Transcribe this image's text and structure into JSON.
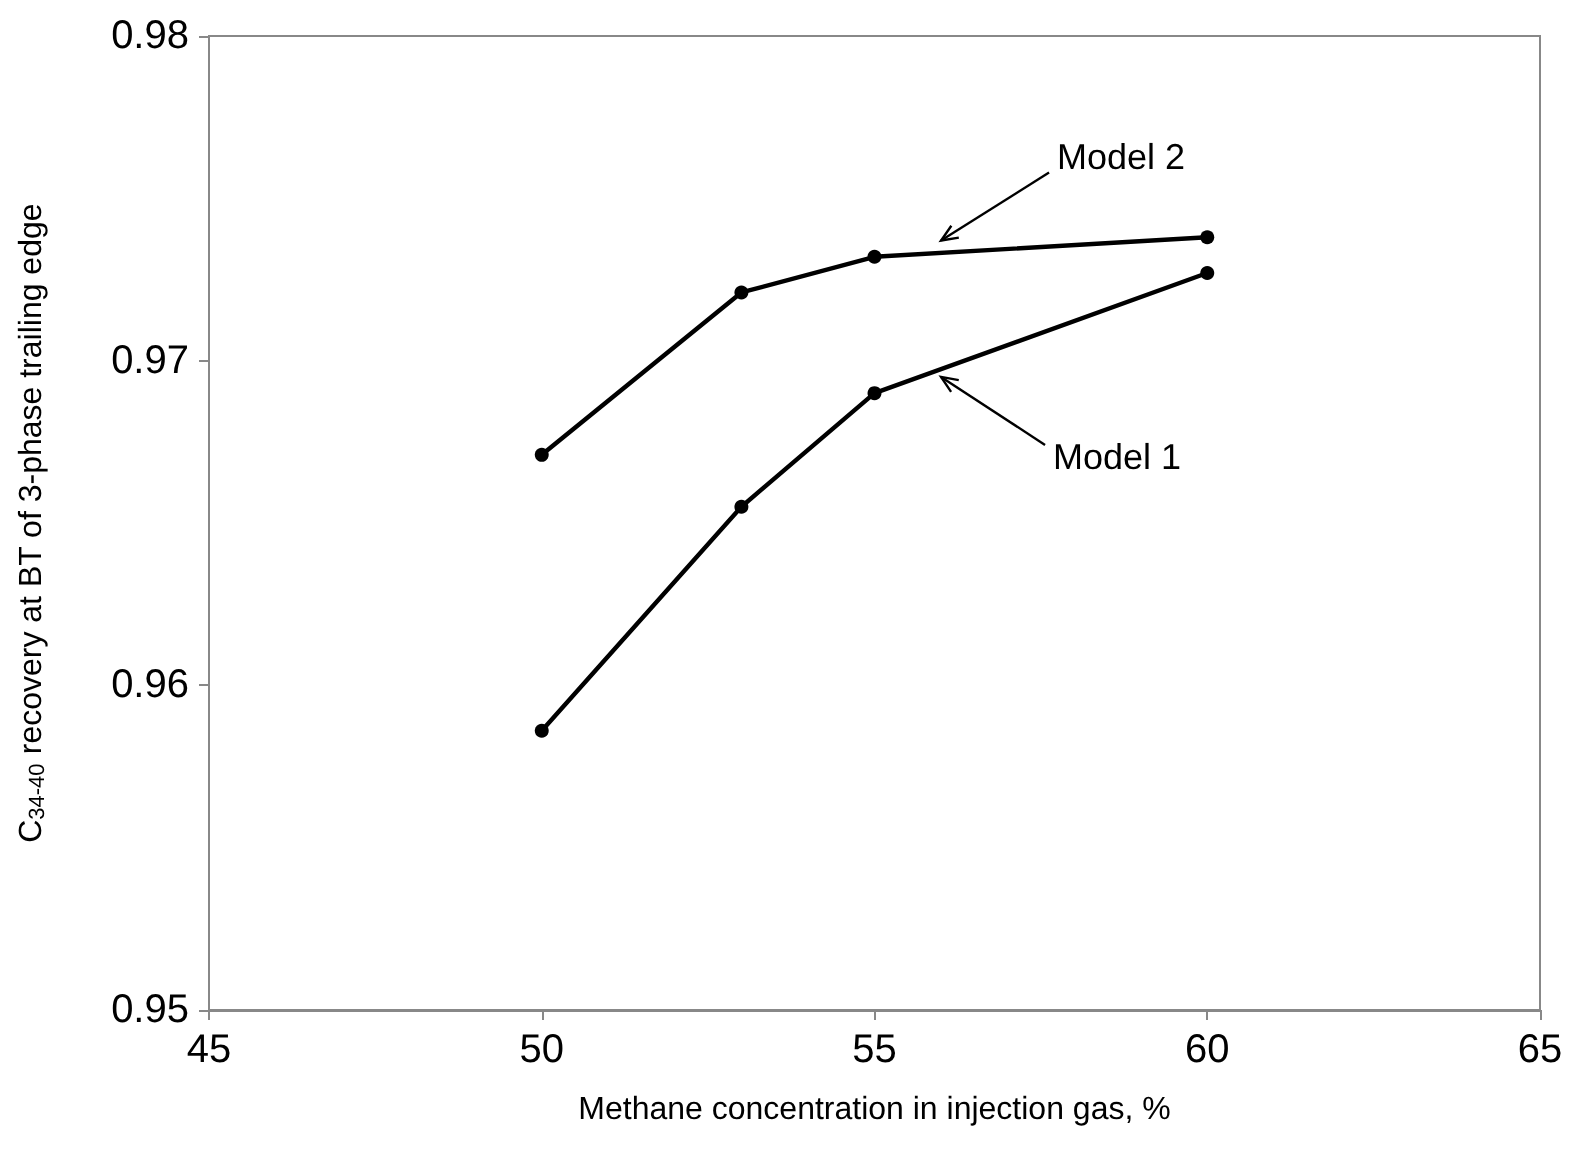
{
  "chart_data": {
    "type": "line",
    "xlabel": "Methane concentration in injection gas, %",
    "ylabel": "C$_{34-40}$ recovery at BT of 3-phase trailing edge",
    "x": [
      50,
      53,
      55,
      60
    ],
    "series": [
      {
        "color": "#000000",
        "values": [
          0.9586,
          0.9655,
          0.969,
          0.9727
        ]
      },
      {
        "color": "#000000",
        "values": [
          0.9671,
          0.9721,
          0.9732,
          0.9738
        ]
      }
    ],
    "xlim": [
      45,
      65
    ],
    "xticks": [
      45,
      50,
      55,
      60,
      65
    ],
    "ylim": [
      0.95,
      0.98
    ],
    "yticks": [
      0.95,
      0.96,
      0.97,
      0.98
    ],
    "grid": false,
    "marker": "circle",
    "line_style": "solid",
    "annotations": [
      {
        "text": "Model 2",
        "x": 56,
        "y": 0.9737
      },
      {
        "text": "Model 1",
        "x": 56,
        "y": 0.9695
      }
    ]
  }
}
